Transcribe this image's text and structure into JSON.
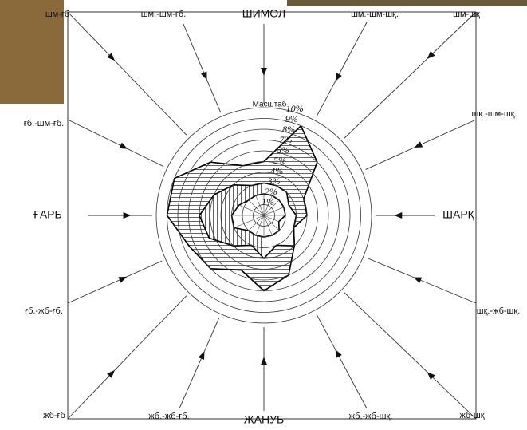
{
  "chart_data": {
    "type": "radar",
    "categories": [
      "ШИМОЛ",
      "шм.-шм-шқ.",
      "шм-шқ",
      "шқ.-шм-шқ.",
      "ШАРҚ",
      "шқ.-жб-шқ.",
      "жб-шқ",
      "жб.-жб-шқ.",
      "ЖАНУБ",
      "жб.-жб-ғб.",
      "жб-ғб",
      "ғб.-жб-ғб.",
      "ҒАРБ",
      "ғб.-шм-ғб.",
      "шм-ғб",
      "шм.-шм-ғб."
    ],
    "scale_label": "Масштаб",
    "ylim": [
      0,
      10
    ],
    "yticks": [
      {
        "value": 1,
        "label": "1%"
      },
      {
        "value": 2,
        "label": "2%"
      },
      {
        "value": 3,
        "label": "3%"
      },
      {
        "value": 4,
        "label": "4%"
      },
      {
        "value": 5,
        "label": "5%"
      },
      {
        "value": 6,
        "label": "6%"
      },
      {
        "value": 7,
        "label": "7%"
      },
      {
        "value": 8,
        "label": "8%"
      },
      {
        "value": 9,
        "label": "9%"
      },
      {
        "value": 10,
        "label": "10%"
      }
    ],
    "series": [
      {
        "color": "#000000",
        "values": [
          5,
          9,
          7,
          4,
          4,
          3,
          4,
          6,
          7,
          5.5,
          7,
          7.5,
          9,
          9,
          7,
          5
        ]
      },
      {
        "color": "#000000",
        "values": [
          3,
          3,
          3,
          2.5,
          3,
          3,
          4,
          3,
          4,
          3,
          4,
          5.5,
          6,
          5,
          4,
          3
        ]
      },
      {
        "color": "#000000",
        "values": [
          2,
          2,
          2,
          2,
          2,
          1.5,
          2,
          2,
          2,
          2,
          2,
          3,
          3,
          2.5,
          2,
          2
        ]
      }
    ]
  }
}
